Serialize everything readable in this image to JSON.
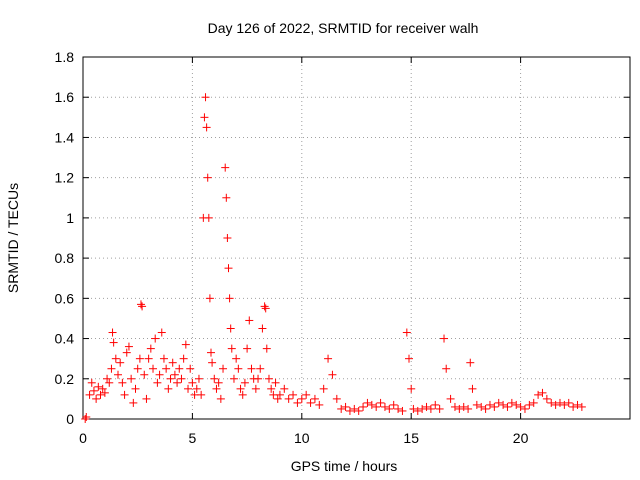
{
  "chart_data": {
    "type": "scatter",
    "title": "Day 126 of 2022, SRMTID for receiver walh",
    "xlabel": "GPS time / hours",
    "ylabel": "SRMTID / TECUs",
    "xlim": [
      0,
      25
    ],
    "ylim": [
      0,
      1.8
    ],
    "x_ticks": [
      0,
      5,
      10,
      15,
      20
    ],
    "x_tick_labels": [
      "0",
      "5",
      "10",
      "15",
      "20"
    ],
    "y_ticks": [
      0,
      0.2,
      0.4,
      0.6,
      0.8,
      1.0,
      1.2,
      1.4,
      1.6,
      1.8
    ],
    "y_tick_labels": [
      "0",
      "0.2",
      "0.4",
      "0.6",
      "0.8",
      "1",
      "1.2",
      "1.4",
      "1.6",
      "1.8"
    ],
    "grid": true,
    "marker": "plus",
    "color": "#ff0000",
    "series": [
      {
        "name": "SRMTID",
        "points": [
          [
            0.1,
            0.0
          ],
          [
            0.15,
            0.01
          ],
          [
            0.3,
            0.12
          ],
          [
            0.4,
            0.18
          ],
          [
            0.5,
            0.14
          ],
          [
            0.6,
            0.1
          ],
          [
            0.7,
            0.16
          ],
          [
            0.8,
            0.12
          ],
          [
            0.9,
            0.15
          ],
          [
            1.0,
            0.13
          ],
          [
            1.1,
            0.2
          ],
          [
            1.2,
            0.18
          ],
          [
            1.3,
            0.25
          ],
          [
            1.35,
            0.43
          ],
          [
            1.4,
            0.38
          ],
          [
            1.5,
            0.3
          ],
          [
            1.6,
            0.22
          ],
          [
            1.7,
            0.28
          ],
          [
            1.8,
            0.18
          ],
          [
            1.9,
            0.12
          ],
          [
            2.0,
            0.33
          ],
          [
            2.1,
            0.36
          ],
          [
            2.2,
            0.2
          ],
          [
            2.3,
            0.08
          ],
          [
            2.4,
            0.15
          ],
          [
            2.5,
            0.25
          ],
          [
            2.6,
            0.3
          ],
          [
            2.65,
            0.57
          ],
          [
            2.7,
            0.56
          ],
          [
            2.8,
            0.22
          ],
          [
            2.9,
            0.1
          ],
          [
            3.0,
            0.3
          ],
          [
            3.1,
            0.35
          ],
          [
            3.2,
            0.25
          ],
          [
            3.3,
            0.4
          ],
          [
            3.4,
            0.18
          ],
          [
            3.5,
            0.22
          ],
          [
            3.6,
            0.43
          ],
          [
            3.7,
            0.3
          ],
          [
            3.8,
            0.25
          ],
          [
            3.9,
            0.15
          ],
          [
            4.0,
            0.2
          ],
          [
            4.1,
            0.28
          ],
          [
            4.2,
            0.22
          ],
          [
            4.3,
            0.18
          ],
          [
            4.4,
            0.25
          ],
          [
            4.5,
            0.2
          ],
          [
            4.6,
            0.3
          ],
          [
            4.7,
            0.37
          ],
          [
            4.8,
            0.15
          ],
          [
            4.9,
            0.25
          ],
          [
            5.0,
            0.18
          ],
          [
            5.1,
            0.12
          ],
          [
            5.2,
            0.15
          ],
          [
            5.3,
            0.2
          ],
          [
            5.4,
            0.12
          ],
          [
            5.5,
            1.0
          ],
          [
            5.55,
            1.5
          ],
          [
            5.6,
            1.6
          ],
          [
            5.65,
            1.45
          ],
          [
            5.7,
            1.2
          ],
          [
            5.75,
            1.0
          ],
          [
            5.8,
            0.6
          ],
          [
            5.85,
            0.33
          ],
          [
            5.9,
            0.28
          ],
          [
            6.0,
            0.2
          ],
          [
            6.1,
            0.15
          ],
          [
            6.2,
            0.18
          ],
          [
            6.3,
            0.1
          ],
          [
            6.4,
            0.25
          ],
          [
            6.5,
            1.25
          ],
          [
            6.55,
            1.1
          ],
          [
            6.6,
            0.9
          ],
          [
            6.65,
            0.75
          ],
          [
            6.7,
            0.6
          ],
          [
            6.75,
            0.45
          ],
          [
            6.8,
            0.35
          ],
          [
            6.9,
            0.2
          ],
          [
            7.0,
            0.3
          ],
          [
            7.1,
            0.25
          ],
          [
            7.2,
            0.15
          ],
          [
            7.3,
            0.12
          ],
          [
            7.4,
            0.18
          ],
          [
            7.5,
            0.35
          ],
          [
            7.6,
            0.49
          ],
          [
            7.7,
            0.25
          ],
          [
            7.8,
            0.2
          ],
          [
            7.9,
            0.15
          ],
          [
            8.0,
            0.2
          ],
          [
            8.1,
            0.25
          ],
          [
            8.2,
            0.45
          ],
          [
            8.3,
            0.56
          ],
          [
            8.35,
            0.55
          ],
          [
            8.4,
            0.35
          ],
          [
            8.5,
            0.2
          ],
          [
            8.6,
            0.15
          ],
          [
            8.7,
            0.12
          ],
          [
            8.8,
            0.18
          ],
          [
            8.9,
            0.1
          ],
          [
            9.0,
            0.12
          ],
          [
            9.2,
            0.15
          ],
          [
            9.4,
            0.1
          ],
          [
            9.6,
            0.12
          ],
          [
            9.8,
            0.08
          ],
          [
            10.0,
            0.1
          ],
          [
            10.2,
            0.12
          ],
          [
            10.4,
            0.08
          ],
          [
            10.6,
            0.1
          ],
          [
            10.8,
            0.07
          ],
          [
            11.0,
            0.15
          ],
          [
            11.2,
            0.3
          ],
          [
            11.4,
            0.22
          ],
          [
            11.6,
            0.1
          ],
          [
            11.8,
            0.05
          ],
          [
            12.0,
            0.06
          ],
          [
            12.2,
            0.04
          ],
          [
            12.4,
            0.05
          ],
          [
            12.6,
            0.04
          ],
          [
            12.8,
            0.06
          ],
          [
            13.0,
            0.08
          ],
          [
            13.2,
            0.07
          ],
          [
            13.4,
            0.06
          ],
          [
            13.6,
            0.08
          ],
          [
            13.8,
            0.06
          ],
          [
            14.0,
            0.05
          ],
          [
            14.2,
            0.07
          ],
          [
            14.4,
            0.05
          ],
          [
            14.6,
            0.04
          ],
          [
            14.8,
            0.43
          ],
          [
            14.9,
            0.3
          ],
          [
            15.0,
            0.15
          ],
          [
            15.1,
            0.05
          ],
          [
            15.3,
            0.04
          ],
          [
            15.5,
            0.05
          ],
          [
            15.7,
            0.06
          ],
          [
            15.9,
            0.05
          ],
          [
            16.1,
            0.07
          ],
          [
            16.3,
            0.05
          ],
          [
            16.5,
            0.4
          ],
          [
            16.6,
            0.25
          ],
          [
            16.8,
            0.1
          ],
          [
            17.0,
            0.06
          ],
          [
            17.2,
            0.05
          ],
          [
            17.4,
            0.06
          ],
          [
            17.6,
            0.05
          ],
          [
            17.7,
            0.28
          ],
          [
            17.8,
            0.15
          ],
          [
            18.0,
            0.07
          ],
          [
            18.2,
            0.06
          ],
          [
            18.4,
            0.05
          ],
          [
            18.6,
            0.07
          ],
          [
            18.8,
            0.06
          ],
          [
            19.0,
            0.08
          ],
          [
            19.2,
            0.07
          ],
          [
            19.4,
            0.06
          ],
          [
            19.6,
            0.08
          ],
          [
            19.8,
            0.07
          ],
          [
            20.0,
            0.06
          ],
          [
            20.2,
            0.05
          ],
          [
            20.4,
            0.07
          ],
          [
            20.6,
            0.08
          ],
          [
            20.8,
            0.12
          ],
          [
            21.0,
            0.13
          ],
          [
            21.2,
            0.1
          ],
          [
            21.4,
            0.08
          ],
          [
            21.6,
            0.07
          ],
          [
            21.8,
            0.08
          ],
          [
            22.0,
            0.07
          ],
          [
            22.2,
            0.08
          ],
          [
            22.4,
            0.06
          ],
          [
            22.6,
            0.07
          ],
          [
            22.8,
            0.06
          ]
        ]
      }
    ]
  }
}
